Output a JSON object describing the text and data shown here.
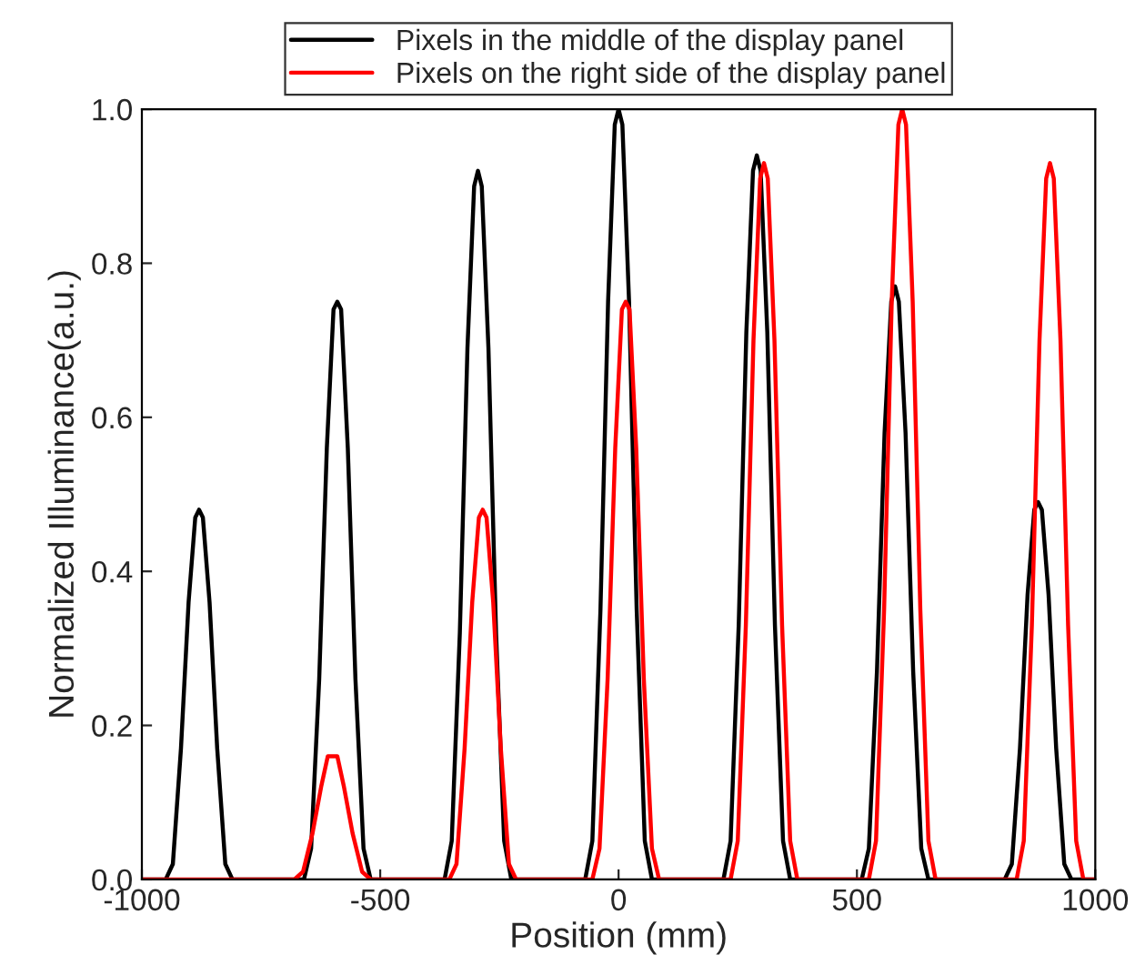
{
  "chart_data": {
    "type": "line",
    "xlabel": "Position (mm)",
    "ylabel": "Normalized Illuminance(a.u.)",
    "xlim": [
      -1000,
      1000
    ],
    "ylim": [
      0,
      1.0
    ],
    "xticks": [
      -1000,
      -500,
      0,
      500,
      1000
    ],
    "yticks": [
      {
        "value": 0,
        "label": "0.0"
      },
      {
        "value": 0.2,
        "label": "0.2"
      },
      {
        "value": 0.4,
        "label": "0.4"
      },
      {
        "value": 0.6,
        "label": "0.6"
      },
      {
        "value": 0.8,
        "label": "0.8"
      },
      {
        "value": 1.0,
        "label": "1.0"
      }
    ],
    "grid": false,
    "legend": "top",
    "marker": "none",
    "line_style": "solid",
    "series": [
      {
        "name": "Pixels in the middle of the display panel",
        "color": "#000000",
        "x": [
          -1000,
          -950,
          -935,
          -918,
          -902,
          -888,
          -880,
          -872,
          -858,
          -842,
          -825,
          -810,
          -660,
          -645,
          -628,
          -612,
          -598,
          -590,
          -582,
          -568,
          -552,
          -535,
          -520,
          -365,
          -350,
          -333,
          -317,
          -303,
          -295,
          -287,
          -273,
          -257,
          -240,
          -225,
          -70,
          -55,
          -38,
          -22,
          -8,
          0,
          8,
          22,
          38,
          55,
          70,
          220,
          235,
          252,
          268,
          282,
          290,
          298,
          312,
          328,
          345,
          360,
          510,
          525,
          542,
          558,
          572,
          580,
          588,
          602,
          618,
          635,
          650,
          810,
          825,
          842,
          858,
          872,
          880,
          888,
          902,
          918,
          935,
          950,
          1000
        ],
        "values": [
          0,
          0,
          0.02,
          0.17,
          0.36,
          0.47,
          0.48,
          0.47,
          0.36,
          0.17,
          0.02,
          0,
          0,
          0.04,
          0.26,
          0.56,
          0.74,
          0.75,
          0.74,
          0.56,
          0.26,
          0.04,
          0,
          0,
          0.05,
          0.32,
          0.69,
          0.9,
          0.92,
          0.9,
          0.69,
          0.32,
          0.05,
          0,
          0,
          0.05,
          0.35,
          0.75,
          0.98,
          1.0,
          0.98,
          0.75,
          0.35,
          0.05,
          0,
          0,
          0.05,
          0.33,
          0.71,
          0.92,
          0.94,
          0.92,
          0.71,
          0.33,
          0.05,
          0,
          0,
          0.04,
          0.27,
          0.58,
          0.75,
          0.77,
          0.75,
          0.58,
          0.27,
          0.04,
          0,
          0,
          0.02,
          0.17,
          0.37,
          0.48,
          0.49,
          0.48,
          0.37,
          0.17,
          0.02,
          0,
          0
        ]
      },
      {
        "name": "Pixels on the right side of the display panel",
        "color": "#ff0000",
        "x": [
          -1000,
          -680,
          -662,
          -642,
          -624,
          -610,
          -600,
          -590,
          -576,
          -558,
          -538,
          -520,
          -355,
          -340,
          -323,
          -307,
          -293,
          -285,
          -277,
          -263,
          -247,
          -230,
          -215,
          -55,
          -40,
          -23,
          -7,
          7,
          15,
          23,
          37,
          53,
          70,
          85,
          235,
          250,
          267,
          283,
          297,
          305,
          313,
          327,
          343,
          360,
          375,
          525,
          540,
          557,
          573,
          587,
          595,
          603,
          617,
          633,
          650,
          665,
          835,
          850,
          867,
          883,
          897,
          905,
          913,
          927,
          943,
          960,
          975,
          1000
        ],
        "values": [
          0,
          0,
          0.01,
          0.06,
          0.12,
          0.16,
          0.16,
          0.16,
          0.12,
          0.06,
          0.01,
          0,
          0,
          0.02,
          0.17,
          0.36,
          0.47,
          0.48,
          0.47,
          0.36,
          0.17,
          0.02,
          0,
          0,
          0.04,
          0.26,
          0.56,
          0.74,
          0.75,
          0.74,
          0.56,
          0.26,
          0.04,
          0,
          0,
          0.05,
          0.33,
          0.7,
          0.91,
          0.93,
          0.91,
          0.7,
          0.33,
          0.05,
          0,
          0,
          0.05,
          0.35,
          0.75,
          0.98,
          1.0,
          0.98,
          0.75,
          0.35,
          0.05,
          0,
          0,
          0.05,
          0.33,
          0.7,
          0.91,
          0.93,
          0.91,
          0.7,
          0.33,
          0.05,
          0,
          0
        ]
      }
    ]
  }
}
